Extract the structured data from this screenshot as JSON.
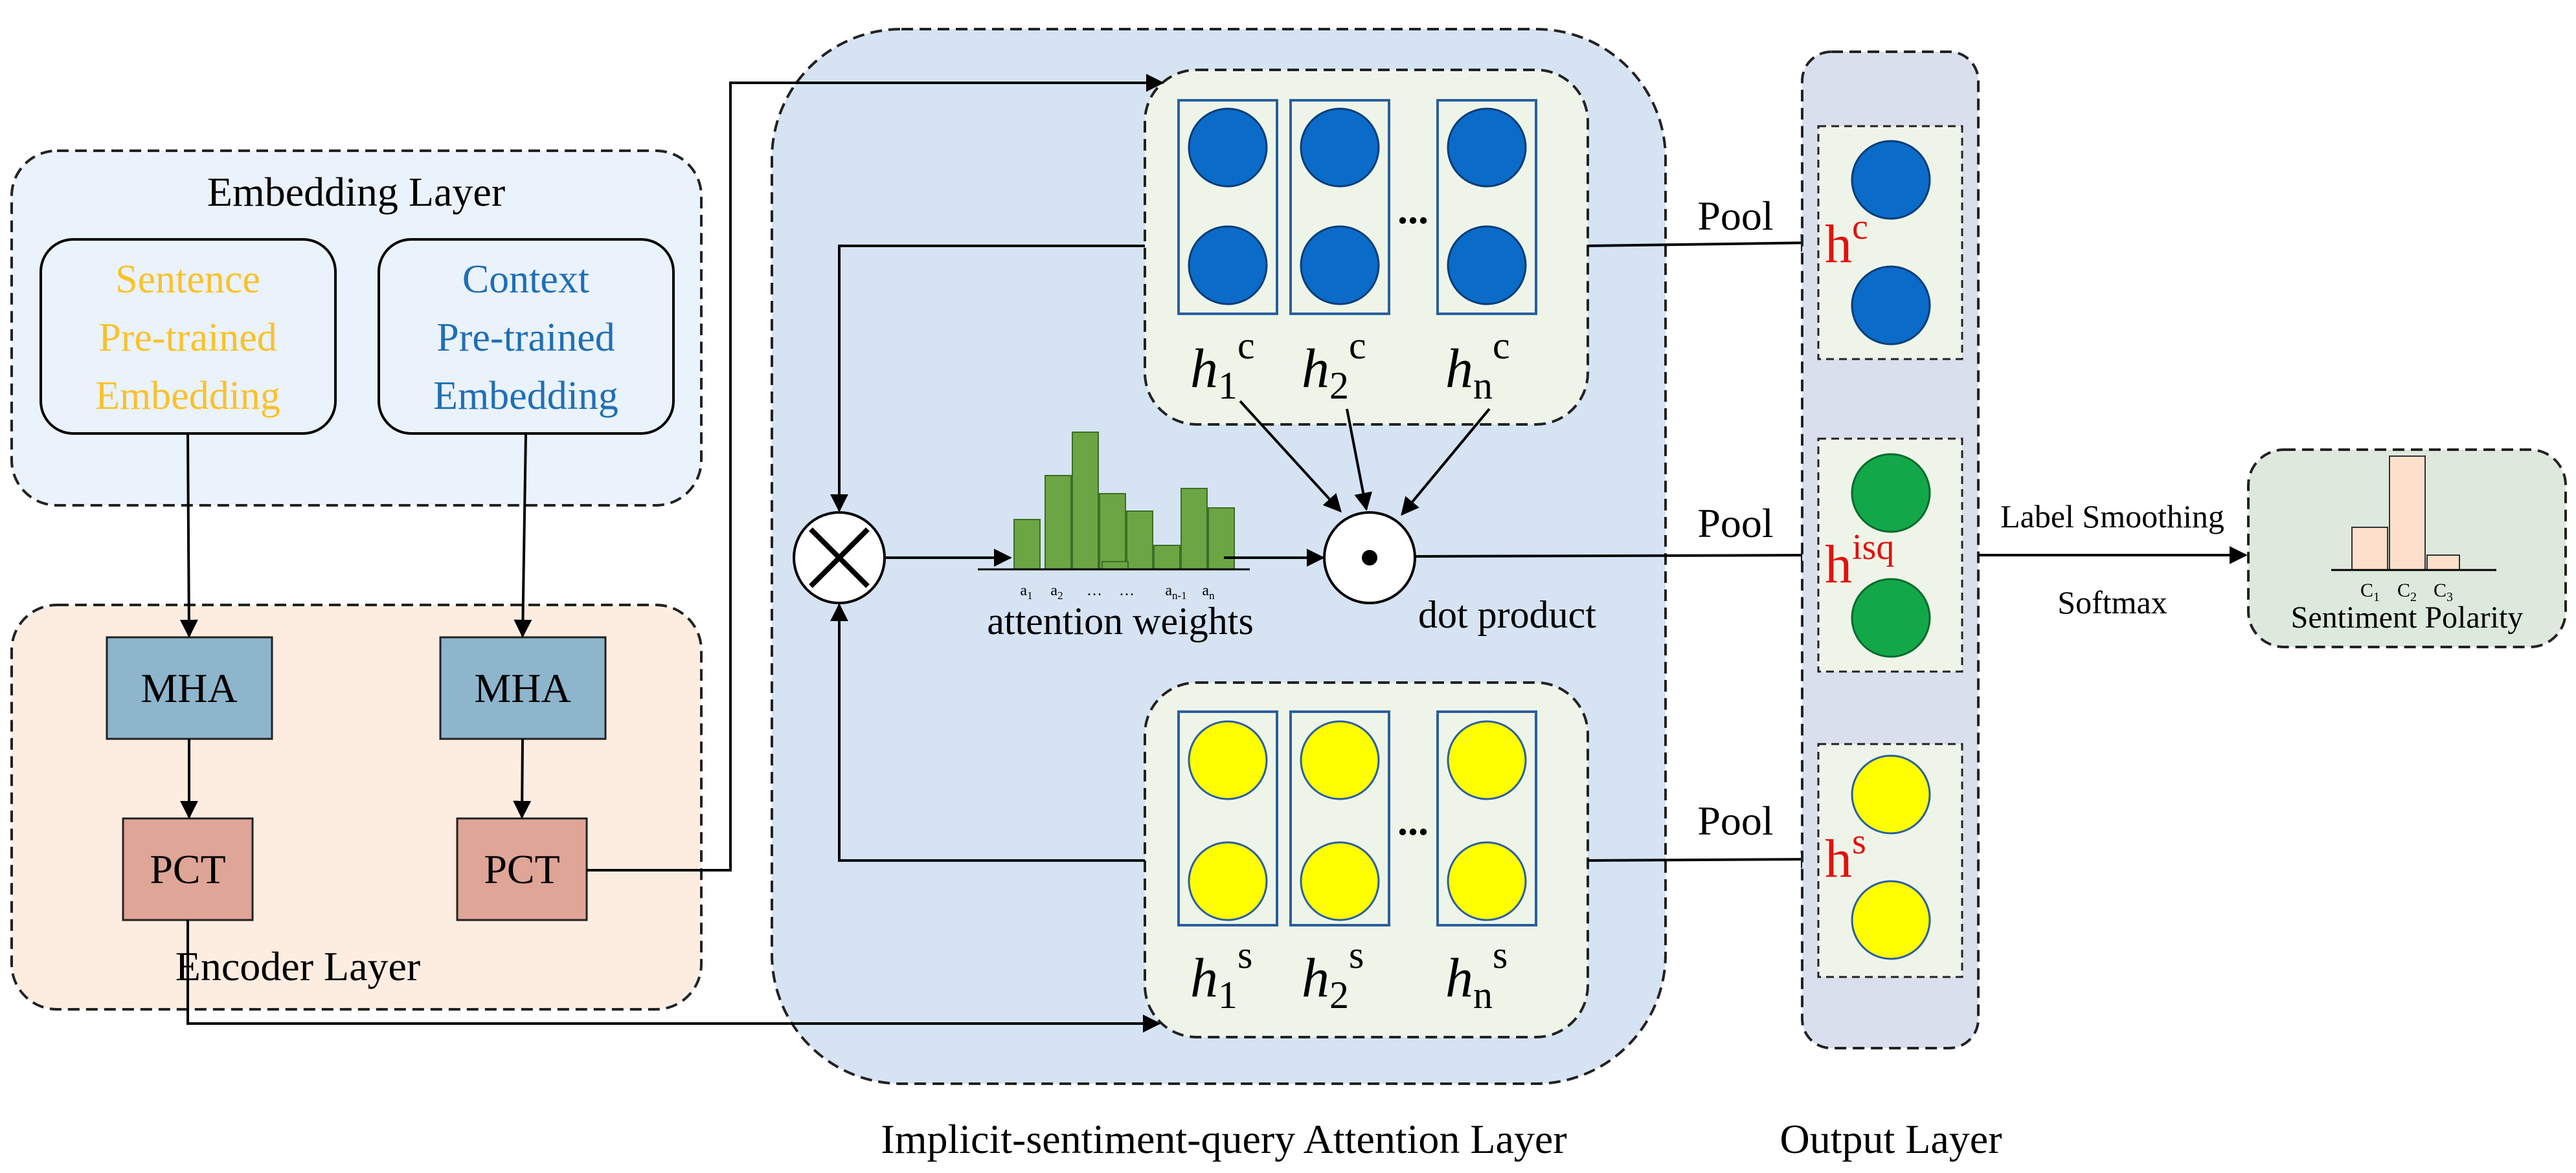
{
  "embedding_layer": {
    "title": "Embedding Layer",
    "sentence_embedding": [
      "Sentence",
      "Pre-trained",
      "Embedding"
    ],
    "context_embedding": [
      "Context",
      "Pre-trained",
      "Embedding"
    ]
  },
  "encoder_layer": {
    "title": "Encoder Layer",
    "mha_label": "MHA",
    "pct_label": "PCT"
  },
  "attention_layer": {
    "title": "Implicit-sentiment-query Attention Layer",
    "ellipsis": "...",
    "context_hidden": [
      {
        "base": "h",
        "sub": "1",
        "sup": "c"
      },
      {
        "base": "h",
        "sub": "2",
        "sup": "c"
      },
      {
        "base": "h",
        "sub": "n",
        "sup": "c"
      }
    ],
    "sentence_hidden": [
      {
        "base": "h",
        "sub": "1",
        "sup": "s"
      },
      {
        "base": "h",
        "sub": "2",
        "sup": "s"
      },
      {
        "base": "h",
        "sub": "n",
        "sup": "s"
      }
    ],
    "attention_weights_label": "attention weights",
    "attention_ticks": [
      "a1",
      "a2",
      "…",
      "…",
      "an-1",
      "an"
    ],
    "dot_product_label": "dot product",
    "multiply_symbol": "✕"
  },
  "output_layer": {
    "title": "Output Layer",
    "pool_label": "Pool",
    "vectors": [
      {
        "base": "h",
        "sup": "c"
      },
      {
        "base": "h",
        "sup": "isq"
      },
      {
        "base": "h",
        "sup": "s"
      }
    ]
  },
  "classifier": {
    "label_smoothing": "Label Smoothing",
    "softmax": "Softmax",
    "sentiment_polarity": "Sentiment Polarity",
    "classes": [
      "C1",
      "C2",
      "C3"
    ]
  },
  "colors": {
    "embedding_bg": "#eaf2fb",
    "encoder_bg": "#fdede1",
    "attention_bg": "#d5e3f3",
    "output_bg": "#dadfee",
    "cell_bg": "#eef5e8",
    "mha": "#8db5cc",
    "pct": "#dfa597",
    "context_blue": "#0b6bc8",
    "sentence_yellow": "#ffff00",
    "isq_green": "#12a84a",
    "sentence_text": "#f9c22a",
    "context_text": "#1f6fb6",
    "red_label": "#e0120f",
    "bar_green": "#6ca544",
    "polarity_bar": "#fde0cc"
  }
}
